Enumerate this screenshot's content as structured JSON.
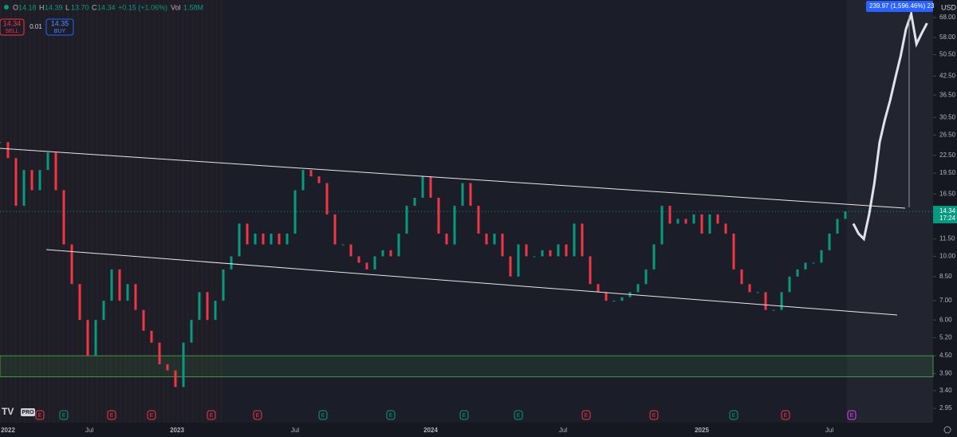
{
  "header": {
    "ohlc": [
      {
        "key": "O",
        "value": "14.18"
      },
      {
        "key": "H",
        "value": "14.39"
      },
      {
        "key": "L",
        "value": "13.70"
      },
      {
        "key": "C",
        "value": "14.34"
      }
    ],
    "change": "+0.15 (+1.06%)",
    "volume_label": "Vol",
    "volume": "1.58M"
  },
  "trade": {
    "sell_price": "14.34",
    "sell_label": "SELL",
    "quantity": "0.01",
    "buy_price": "14.35",
    "buy_label": "BUY"
  },
  "price_axis": {
    "currency": "USD",
    "scale": "log",
    "ylim": [
      2.63,
      78.3
    ],
    "ticks": [
      {
        "value": 68,
        "label": "68.00"
      },
      {
        "value": 58,
        "label": "58.00"
      },
      {
        "value": 50.5,
        "label": "50.50"
      },
      {
        "value": 42.5,
        "label": "42.50"
      },
      {
        "value": 36.5,
        "label": "36.50"
      },
      {
        "value": 30.5,
        "label": "30.50"
      },
      {
        "value": 26.5,
        "label": "26.50"
      },
      {
        "value": 22.5,
        "label": "22.50"
      },
      {
        "value": 19.5,
        "label": "19.50"
      },
      {
        "value": 16.5,
        "label": "16.50"
      },
      {
        "value": 11.5,
        "label": "11.50"
      },
      {
        "value": 10,
        "label": "10.00"
      },
      {
        "value": 8.5,
        "label": "8.50"
      },
      {
        "value": 7,
        "label": "7.00"
      },
      {
        "value": 6,
        "label": "6.00"
      },
      {
        "value": 5.2,
        "label": "5.20"
      },
      {
        "value": 4.5,
        "label": "4.50"
      },
      {
        "value": 3.9,
        "label": "3.90"
      },
      {
        "value": 3.4,
        "label": "3.40"
      },
      {
        "value": 2.95,
        "label": "2.95"
      }
    ]
  },
  "time_axis": {
    "labels": [
      "2022",
      "Jul",
      "2023",
      "Jul",
      "2024",
      "Jul",
      "2025",
      "Jul"
    ]
  },
  "last_price": {
    "value": 14.34,
    "label": "14.34",
    "countdown": "17:24",
    "color": "#089981"
  },
  "measure": {
    "label": "239.97 (1,596.46%) 23",
    "color": "#2962ff"
  },
  "zone": {
    "low": 3.8,
    "high": 4.5,
    "color": "#4caf50"
  },
  "series": {
    "closes": [
      25,
      22,
      15,
      20,
      17,
      20,
      23,
      17,
      11,
      8,
      6,
      4.5,
      6,
      7,
      9,
      7,
      8,
      6.5,
      5.5,
      5,
      4.2,
      4,
      3.5,
      5,
      6,
      7.5,
      6,
      7,
      9,
      10,
      13,
      11,
      12,
      11,
      12,
      11,
      12,
      17,
      20,
      19,
      18,
      14,
      11,
      11,
      10,
      9.5,
      9,
      10,
      10.5,
      10,
      12,
      15,
      16,
      19,
      16,
      12,
      11,
      15,
      18,
      15,
      12,
      11,
      12,
      10,
      8.5,
      11,
      10,
      10,
      10.5,
      10,
      11,
      10,
      13,
      10,
      8,
      7.5,
      7,
      7,
      7.2,
      7.5,
      8,
      9,
      11,
      15,
      13,
      13.5,
      13,
      14,
      12,
      14,
      13,
      12,
      9,
      8,
      7.5,
      7.5,
      6.5,
      6.5,
      7.5,
      8.5,
      9,
      9.5,
      9.5,
      10.5,
      12,
      13.5,
      14.34
    ],
    "up_color": "#089981",
    "down_color": "#f23645",
    "projection": [
      13,
      12,
      11.5,
      14,
      18,
      25,
      30,
      35,
      42,
      50,
      62,
      70,
      55,
      60,
      65
    ],
    "projection_color": "#e0e3eb"
  },
  "events": [
    {
      "label": "E",
      "color": "#f23645"
    },
    {
      "label": "E",
      "color": "#089981"
    },
    {
      "label": "E",
      "color": "#f23645"
    },
    {
      "label": "E",
      "color": "#f23645"
    },
    {
      "label": "E",
      "color": "#f23645"
    },
    {
      "label": "E",
      "color": "#f23645"
    },
    {
      "label": "E",
      "color": "#089981"
    },
    {
      "label": "E",
      "color": "#089981"
    },
    {
      "label": "E",
      "color": "#089981"
    },
    {
      "label": "E",
      "color": "#089981"
    },
    {
      "label": "E",
      "color": "#f23645"
    },
    {
      "label": "E",
      "color": "#f23645"
    },
    {
      "label": "E",
      "color": "#089981"
    },
    {
      "label": "E",
      "color": "#f23645"
    },
    {
      "label": "E",
      "color": "#e040fb"
    }
  ],
  "logo": "PRO"
}
